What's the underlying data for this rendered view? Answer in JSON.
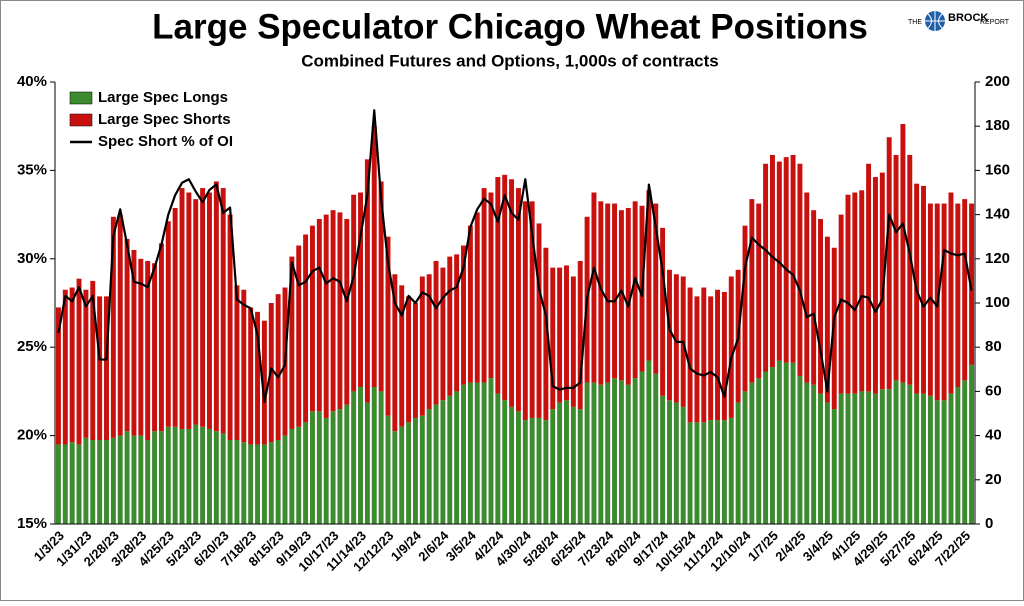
{
  "logo": {
    "pre": "THE",
    "name": "BROCK",
    "post": "REPORT"
  },
  "chart_data": {
    "type": "bar",
    "stacked": true,
    "title": "Large Speculator Chicago Wheat Positions",
    "subtitle": "Combined Futures and Options, 1,000s of contracts",
    "categories": [
      "1/3/23",
      null,
      null,
      null,
      "1/31/23",
      null,
      null,
      null,
      "2/28/23",
      null,
      null,
      null,
      "3/28/23",
      null,
      null,
      null,
      "4/25/23",
      null,
      null,
      null,
      "5/23/23",
      null,
      null,
      null,
      "6/20/23",
      null,
      null,
      null,
      "7/18/23",
      null,
      null,
      null,
      "8/15/23",
      null,
      null,
      null,
      "9/19/23",
      null,
      null,
      null,
      "10/17/23",
      null,
      null,
      null,
      "11/14/23",
      null,
      null,
      null,
      "12/12/23",
      null,
      null,
      null,
      "1/9/24",
      null,
      null,
      null,
      "2/6/24",
      null,
      null,
      null,
      "3/5/24",
      null,
      null,
      null,
      "4/2/24",
      null,
      null,
      null,
      "4/30/24",
      null,
      null,
      null,
      "5/28/24",
      null,
      null,
      null,
      "6/25/24",
      null,
      null,
      null,
      "7/23/24",
      null,
      null,
      null,
      "8/20/24",
      null,
      null,
      null,
      "9/17/24",
      null,
      null,
      null,
      "10/15/24",
      null,
      null,
      null,
      "11/12/24",
      null,
      null,
      null,
      "12/10/24",
      null,
      null,
      null,
      "1/7/25",
      null,
      null,
      null,
      "2/4/25",
      null,
      null,
      null,
      "3/4/25",
      null,
      null,
      null,
      "4/1/25",
      null,
      null,
      null,
      "4/29/25",
      null,
      null,
      null,
      "5/27/25",
      null,
      null,
      null,
      "6/24/25",
      null,
      null,
      null,
      "7/22/25",
      null
    ],
    "series": [
      {
        "name": "Large Spec Longs",
        "color": "#3d8b2f",
        "axis": "y2",
        "values": [
          36,
          36,
          37,
          36,
          39,
          38,
          38,
          38,
          39,
          40,
          42,
          40,
          40,
          38,
          42,
          42,
          44,
          44,
          43,
          43,
          45,
          44,
          43,
          42,
          41,
          38,
          38,
          37,
          36,
          36,
          36,
          37,
          38,
          40,
          43,
          44,
          46,
          51,
          51,
          48,
          51,
          52,
          54,
          60,
          62,
          55,
          62,
          60,
          49,
          42,
          44,
          46,
          48,
          49,
          52,
          54,
          56,
          58,
          60,
          63,
          64,
          64,
          64,
          66,
          59,
          56,
          53,
          51,
          47,
          48,
          48,
          47,
          52,
          55,
          56,
          53,
          52,
          64,
          64,
          63,
          64,
          66,
          65,
          63,
          66,
          69,
          74,
          68,
          58,
          56,
          55,
          53,
          46,
          46,
          46,
          47,
          47,
          47,
          48,
          55,
          60,
          64,
          66,
          69,
          71,
          74,
          73,
          73,
          67,
          64,
          63,
          59,
          55,
          52,
          59,
          59,
          59,
          60,
          60,
          59,
          61,
          61,
          65,
          64,
          63,
          59,
          59,
          58,
          56,
          56,
          59,
          62,
          65,
          72
        ]
      },
      {
        "name": "Large Spec Shorts",
        "color": "#c8100f",
        "axis": "y2",
        "values": [
          62,
          70,
          70,
          75,
          67,
          72,
          65,
          65,
          100,
          100,
          87,
          84,
          80,
          81,
          76,
          85,
          93,
          99,
          109,
          107,
          102,
          108,
          107,
          113,
          111,
          102,
          70,
          69,
          62,
          60,
          56,
          63,
          66,
          67,
          78,
          82,
          85,
          84,
          87,
          92,
          91,
          89,
          84,
          89,
          88,
          110,
          118,
          95,
          81,
          71,
          64,
          57,
          52,
          63,
          61,
          65,
          60,
          63,
          62,
          63,
          71,
          77,
          88,
          84,
          98,
          102,
          103,
          101,
          99,
          98,
          88,
          78,
          64,
          61,
          61,
          59,
          67,
          75,
          86,
          83,
          81,
          79,
          77,
          80,
          80,
          75,
          77,
          77,
          76,
          59,
          58,
          59,
          61,
          57,
          61,
          56,
          59,
          58,
          64,
          60,
          75,
          83,
          79,
          94,
          96,
          90,
          93,
          94,
          96,
          86,
          79,
          79,
          75,
          73,
          81,
          90,
          91,
          91,
          103,
          98,
          98,
          114,
          102,
          117,
          104,
          95,
          94,
          87,
          89,
          89,
          91,
          83,
          82,
          73
        ]
      },
      {
        "name": "Spec Short % of OI",
        "color": "#000000",
        "axis": "y",
        "type": "line",
        "values": [
          25.8,
          27.9,
          27.6,
          28.4,
          27.3,
          27.9,
          24.3,
          24.3,
          31.3,
          32.8,
          30.8,
          28.7,
          28.6,
          28.4,
          29.5,
          30.8,
          32.5,
          33.6,
          34.3,
          34.5,
          33.8,
          33.2,
          33.9,
          34.2,
          32.6,
          32.9,
          27.7,
          27.4,
          27.2,
          25.7,
          21.9,
          23.8,
          23.3,
          24.0,
          29.8,
          28.5,
          28.7,
          29.3,
          29.5,
          28.6,
          28.9,
          28.7,
          27.6,
          29.0,
          31.3,
          33.6,
          38.4,
          33.4,
          29.8,
          27.5,
          26.8,
          27.9,
          27.5,
          28.1,
          27.9,
          27.2,
          27.8,
          28.2,
          28.4,
          29.5,
          31.8,
          32.8,
          33.4,
          33.1,
          32.1,
          33.6,
          32.6,
          32.2,
          34.5,
          31.4,
          28.3,
          26.8,
          22.8,
          22.6,
          22.7,
          22.7,
          23.0,
          27.8,
          29.5,
          28.3,
          27.6,
          27.6,
          28.2,
          27.3,
          28.9,
          27.9,
          34.2,
          31.8,
          29.3,
          26.0,
          25.3,
          25.3,
          23.8,
          23.5,
          23.4,
          23.6,
          23.3,
          22.2,
          24.4,
          25.5,
          29.5,
          31.2,
          30.8,
          30.5,
          30.1,
          29.8,
          29.4,
          29.1,
          28.2,
          26.7,
          26.9,
          24.8,
          22.5,
          26.7,
          27.7,
          27.5,
          27.1,
          27.9,
          27.8,
          27.0,
          27.7,
          32.5,
          31.5,
          32.0,
          30.3,
          28.2,
          27.3,
          27.8,
          27.3,
          30.5,
          30.3,
          30.2,
          30.3,
          28.2
        ]
      }
    ],
    "ylim": [
      15,
      40
    ],
    "yticks": [
      {
        "value": 15,
        "label": "15%"
      },
      {
        "value": 20,
        "label": "20%"
      },
      {
        "value": 25,
        "label": "25%"
      },
      {
        "value": 30,
        "label": "30%"
      },
      {
        "value": 35,
        "label": "35%"
      },
      {
        "value": 40,
        "label": "40%"
      }
    ],
    "y2lim": [
      0,
      200
    ],
    "y2ticks": [
      0,
      20,
      40,
      60,
      80,
      100,
      120,
      140,
      160,
      180,
      200
    ],
    "grid": false,
    "legend": "top-left"
  }
}
